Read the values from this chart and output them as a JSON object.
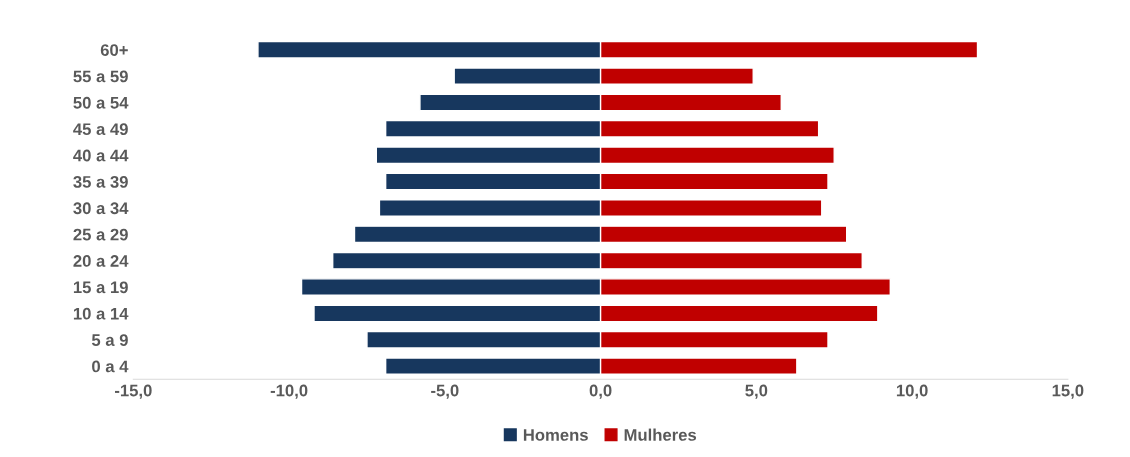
{
  "chart_data": {
    "type": "bar",
    "orientation": "horizontal",
    "categories": [
      "60+",
      "55 a 59",
      "50 a 54",
      "45 a 49",
      "40 a 44",
      "35 a 39",
      "30 a 34",
      "25 a 29",
      "20 a 24",
      "15 a 19",
      "10 a 14",
      "5 a 9",
      "0 a 4"
    ],
    "series": [
      {
        "name": "Homens",
        "color": "#17375e",
        "values": [
          -11.0,
          -4.7,
          -5.8,
          -6.9,
          -7.2,
          -6.9,
          -7.1,
          -7.9,
          -8.6,
          -9.6,
          -9.2,
          -7.5,
          -6.9
        ]
      },
      {
        "name": "Mulheres",
        "color": "#c00000",
        "values": [
          12.1,
          4.9,
          5.8,
          7.0,
          7.5,
          7.3,
          7.1,
          7.9,
          8.4,
          9.3,
          8.9,
          7.3,
          6.3
        ]
      }
    ],
    "xlim": [
      -15,
      15
    ],
    "xticks": [
      {
        "value": -15,
        "label": "-15,0"
      },
      {
        "value": -10,
        "label": "-10,0"
      },
      {
        "value": -5,
        "label": "-5,0"
      },
      {
        "value": 0,
        "label": "0,0"
      },
      {
        "value": 5,
        "label": "5,0"
      },
      {
        "value": 10,
        "label": "10,0"
      },
      {
        "value": 15,
        "label": "15,0"
      }
    ],
    "grid": false,
    "stacked": true,
    "legend": "bottom"
  }
}
